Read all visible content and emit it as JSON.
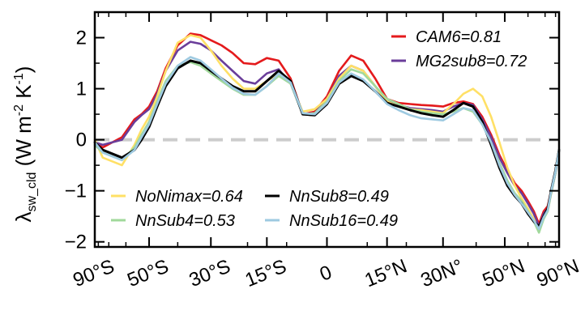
{
  "chart_data": {
    "type": "line",
    "ylabel": {
      "symbol": "λ",
      "subscript": "sw_cld",
      "units_open": " (W m",
      "units_exp1": "-2",
      "units_mid": " K",
      "units_exp2": "-1",
      "units_close": ")"
    },
    "xticks": [
      {
        "value": -90,
        "label": "90°S"
      },
      {
        "value": -50,
        "label": "50°S"
      },
      {
        "value": -30,
        "label": "30°S"
      },
      {
        "value": -15,
        "label": "15°S"
      },
      {
        "value": 0,
        "label": "0"
      },
      {
        "value": 15,
        "label": "15°N"
      },
      {
        "value": 30,
        "label": "30N°"
      },
      {
        "value": 50,
        "label": "50°N"
      },
      {
        "value": 90,
        "label": "90°N"
      }
    ],
    "x_scale": "sine-latitude",
    "xlim": [
      -90,
      90
    ],
    "yticks": [
      {
        "value": 2,
        "label": "2"
      },
      {
        "value": 1,
        "label": "1"
      },
      {
        "value": 0,
        "label": "0"
      },
      {
        "value": -1,
        "label": "−1"
      },
      {
        "value": -2,
        "label": "−2"
      }
    ],
    "ylim": [
      -2.1,
      2.5
    ],
    "zero_line_color": "#cccccc",
    "grid": false,
    "legend_position": "top-right and lower-left",
    "x": [
      -90,
      -75,
      -62,
      -56,
      -53,
      -50,
      -47,
      -44,
      -40,
      -36,
      -33,
      -30,
      -27,
      -24,
      -21,
      -18,
      -15,
      -12,
      -9,
      -6,
      -3,
      0,
      3,
      6,
      9,
      12,
      15,
      18,
      21,
      24,
      27,
      30,
      33,
      36,
      39,
      42,
      45,
      48,
      51,
      54,
      57,
      60,
      63,
      66,
      69,
      72,
      75,
      80,
      90
    ],
    "series": [
      {
        "name": "CAM6=0.81",
        "color": "#e41a1c",
        "values": [
          -0.05,
          -0.15,
          0.05,
          0.4,
          0.5,
          0.65,
          0.95,
          1.4,
          1.85,
          2.08,
          2.05,
          1.95,
          1.85,
          1.7,
          1.5,
          1.48,
          1.6,
          1.55,
          1.2,
          0.5,
          0.55,
          0.85,
          1.35,
          1.65,
          1.55,
          1.2,
          0.8,
          0.72,
          0.7,
          0.68,
          0.67,
          0.65,
          0.72,
          0.75,
          0.7,
          0.45,
          0.1,
          -0.3,
          -0.6,
          -0.85,
          -1.0,
          -1.2,
          -1.4,
          -1.65,
          -1.4,
          -1.3,
          -1.0,
          -0.6,
          -0.2
        ]
      },
      {
        "name": "MG2sub8=0.72",
        "color": "#6a3d9a",
        "values": [
          -0.05,
          -0.1,
          0.0,
          0.35,
          0.48,
          0.6,
          0.9,
          1.35,
          1.75,
          1.92,
          1.88,
          1.75,
          1.55,
          1.35,
          1.15,
          1.1,
          1.3,
          1.38,
          1.1,
          0.5,
          0.52,
          0.8,
          1.25,
          1.45,
          1.35,
          1.05,
          0.75,
          0.68,
          0.62,
          0.6,
          0.58,
          0.55,
          0.65,
          0.72,
          0.68,
          0.4,
          0.05,
          -0.35,
          -0.65,
          -0.9,
          -1.05,
          -1.25,
          -1.45,
          -1.7,
          -1.45,
          -1.35,
          -1.05,
          -0.65,
          -0.2
        ]
      },
      {
        "name": "NoNimax=0.64",
        "color": "#ffe066",
        "values": [
          0.0,
          -0.35,
          -0.5,
          -0.1,
          0.2,
          0.45,
          0.85,
          1.35,
          1.9,
          2.05,
          2.0,
          1.75,
          1.45,
          1.2,
          1.0,
          1.0,
          1.15,
          1.3,
          1.1,
          0.55,
          0.6,
          0.8,
          1.2,
          1.45,
          1.35,
          1.05,
          0.75,
          0.65,
          0.6,
          0.58,
          0.55,
          0.52,
          0.7,
          0.9,
          1.0,
          0.85,
          0.45,
          -0.05,
          -0.55,
          -0.9,
          -1.15,
          -1.35,
          -1.55,
          -1.78,
          -1.55,
          -1.4,
          -1.05,
          -0.6,
          -0.2
        ]
      },
      {
        "name": "NnSub4=0.53",
        "color": "#a1d99b",
        "values": [
          -0.1,
          -0.25,
          -0.4,
          -0.15,
          0.1,
          0.35,
          0.75,
          1.15,
          1.45,
          1.52,
          1.45,
          1.3,
          1.15,
          1.0,
          0.88,
          0.88,
          1.05,
          1.25,
          1.1,
          0.5,
          0.52,
          0.75,
          1.15,
          1.38,
          1.3,
          1.05,
          0.8,
          0.7,
          0.6,
          0.55,
          0.52,
          0.5,
          0.55,
          0.62,
          0.55,
          0.3,
          -0.05,
          -0.45,
          -0.8,
          -1.05,
          -1.2,
          -1.4,
          -1.6,
          -1.82,
          -1.55,
          -1.4,
          -1.05,
          -0.65,
          -0.2
        ]
      },
      {
        "name": "NnSub8=0.49",
        "color": "#000000",
        "values": [
          -0.05,
          -0.2,
          -0.35,
          -0.2,
          0.0,
          0.25,
          0.65,
          1.05,
          1.4,
          1.55,
          1.5,
          1.35,
          1.2,
          1.05,
          0.95,
          0.95,
          1.15,
          1.35,
          1.15,
          0.5,
          0.48,
          0.7,
          1.1,
          1.25,
          1.15,
          0.95,
          0.72,
          0.65,
          0.58,
          0.52,
          0.48,
          0.45,
          0.58,
          0.72,
          0.65,
          0.35,
          -0.1,
          -0.55,
          -0.9,
          -1.1,
          -1.25,
          -1.45,
          -1.6,
          -1.7,
          -1.5,
          -1.35,
          -1.0,
          -0.6,
          -0.2
        ]
      },
      {
        "name": "NnSub16=0.49",
        "color": "#9ecae1",
        "values": [
          -0.05,
          -0.25,
          -0.4,
          -0.2,
          0.05,
          0.3,
          0.7,
          1.1,
          1.45,
          1.62,
          1.55,
          1.38,
          1.2,
          1.02,
          0.9,
          0.88,
          1.05,
          1.3,
          1.12,
          0.52,
          0.5,
          0.72,
          1.12,
          1.3,
          1.18,
          0.95,
          0.7,
          0.58,
          0.48,
          0.42,
          0.4,
          0.38,
          0.5,
          0.62,
          0.58,
          0.3,
          -0.05,
          -0.5,
          -0.85,
          -1.08,
          -1.25,
          -1.42,
          -1.58,
          -1.75,
          -1.52,
          -1.38,
          -1.02,
          -0.62,
          -0.2
        ]
      }
    ],
    "legend_top": [
      "CAM6=0.81",
      "MG2sub8=0.72"
    ],
    "legend_bottom": [
      [
        "NoNimax=0.64",
        "NnSub8=0.49"
      ],
      [
        "NnSub4=0.53",
        "NnSub16=0.49"
      ]
    ]
  }
}
